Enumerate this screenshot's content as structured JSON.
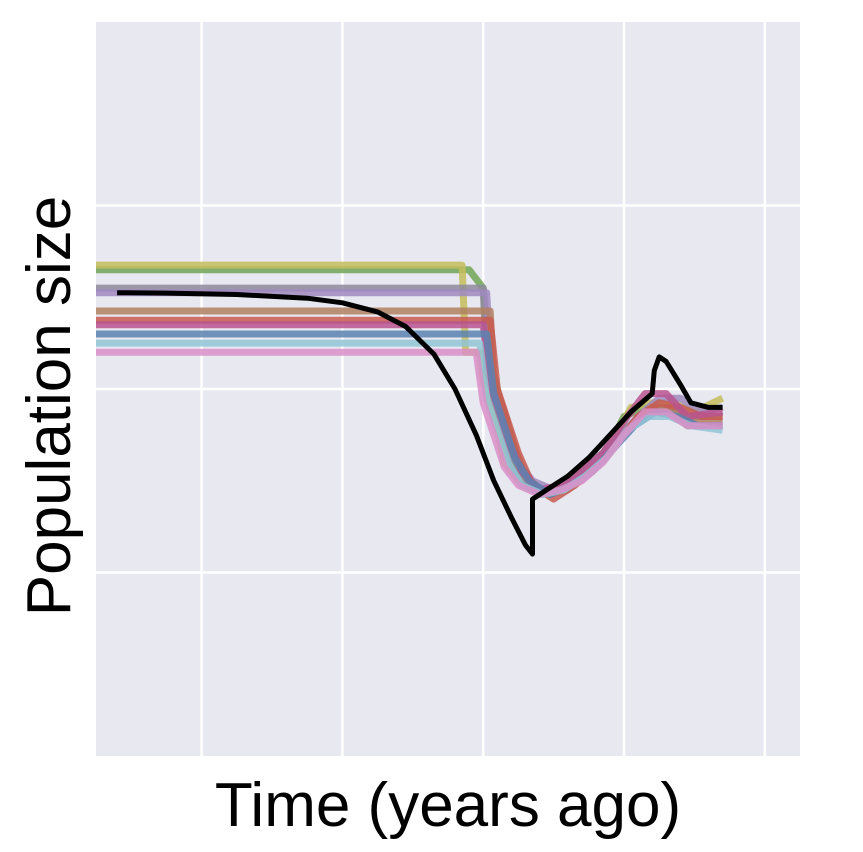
{
  "chart_data": {
    "type": "line",
    "title": "",
    "xlabel": "Time (years ago)",
    "ylabel": "Population size",
    "xlim": [
      0,
      10
    ],
    "ylim": [
      0,
      8
    ],
    "xticks": [
      1.5,
      3.5,
      5.5,
      7.5,
      9.5
    ],
    "yticks": [
      2,
      4,
      6
    ],
    "grid": true,
    "background": "#e8e8f1",
    "grid_color": "#ffffff",
    "series": [
      {
        "color": "#71a555",
        "points": [
          [
            0,
            5.3
          ],
          [
            5.3,
            5.3
          ],
          [
            5.5,
            5.1
          ],
          [
            5.55,
            4.6
          ],
          [
            5.6,
            4.3
          ],
          [
            5.7,
            4.0
          ],
          [
            5.8,
            3.7
          ],
          [
            5.9,
            3.4
          ],
          [
            6.0,
            3.1
          ],
          [
            6.2,
            2.9
          ],
          [
            6.6,
            2.9
          ],
          [
            6.8,
            3.1
          ],
          [
            7.1,
            3.2
          ],
          [
            7.3,
            3.4
          ],
          [
            7.5,
            3.7
          ],
          [
            7.8,
            3.8
          ],
          [
            8.2,
            3.8
          ],
          [
            8.4,
            3.6
          ],
          [
            8.9,
            3.6
          ]
        ]
      },
      {
        "color": "#c4bd5c",
        "points": [
          [
            0,
            5.35
          ],
          [
            5.2,
            5.35
          ],
          [
            5.25,
            4.4
          ],
          [
            5.45,
            4.4
          ],
          [
            5.5,
            4.1
          ],
          [
            5.6,
            3.8
          ],
          [
            5.7,
            3.55
          ],
          [
            5.8,
            3.2
          ],
          [
            6.0,
            3.0
          ],
          [
            6.3,
            2.9
          ],
          [
            6.6,
            2.95
          ],
          [
            6.9,
            3.1
          ],
          [
            7.2,
            3.25
          ],
          [
            7.4,
            3.5
          ],
          [
            7.6,
            3.8
          ],
          [
            7.9,
            3.85
          ],
          [
            8.2,
            3.85
          ],
          [
            8.5,
            3.75
          ],
          [
            8.9,
            3.9
          ]
        ]
      },
      {
        "color": "#8e8a9c",
        "points": [
          [
            0,
            5.1
          ],
          [
            5.5,
            5.1
          ],
          [
            5.55,
            4.2
          ],
          [
            5.65,
            3.9
          ],
          [
            5.8,
            3.5
          ],
          [
            5.9,
            3.2
          ],
          [
            6.0,
            3.05
          ],
          [
            6.3,
            2.85
          ],
          [
            6.6,
            2.95
          ],
          [
            6.9,
            3.15
          ],
          [
            7.2,
            3.3
          ],
          [
            7.5,
            3.55
          ],
          [
            7.8,
            3.75
          ],
          [
            8.1,
            3.8
          ],
          [
            8.4,
            3.7
          ],
          [
            8.9,
            3.7
          ]
        ]
      },
      {
        "color": "#a08ac0",
        "points": [
          [
            0,
            5.05
          ],
          [
            5.55,
            5.05
          ],
          [
            5.6,
            4.3
          ],
          [
            5.7,
            3.95
          ],
          [
            5.85,
            3.6
          ],
          [
            6.0,
            3.2
          ],
          [
            6.2,
            3.0
          ],
          [
            6.5,
            2.9
          ],
          [
            6.8,
            3.0
          ],
          [
            7.1,
            3.2
          ],
          [
            7.4,
            3.45
          ],
          [
            7.7,
            3.7
          ],
          [
            8.0,
            3.9
          ],
          [
            8.3,
            3.9
          ],
          [
            8.6,
            3.75
          ],
          [
            8.9,
            3.8
          ]
        ]
      },
      {
        "color": "#b08060",
        "points": [
          [
            0,
            4.85
          ],
          [
            5.6,
            4.85
          ],
          [
            5.65,
            4.1
          ],
          [
            5.8,
            3.75
          ],
          [
            5.95,
            3.35
          ],
          [
            6.1,
            3.05
          ],
          [
            6.4,
            2.85
          ],
          [
            6.7,
            2.9
          ],
          [
            7.0,
            3.1
          ],
          [
            7.3,
            3.3
          ],
          [
            7.6,
            3.6
          ],
          [
            7.9,
            3.8
          ],
          [
            8.2,
            3.8
          ],
          [
            8.5,
            3.65
          ],
          [
            8.9,
            3.65
          ]
        ]
      },
      {
        "color": "#c85a50",
        "points": [
          [
            0,
            4.75
          ],
          [
            5.6,
            4.75
          ],
          [
            5.7,
            4.0
          ],
          [
            5.85,
            3.65
          ],
          [
            6.0,
            3.3
          ],
          [
            6.2,
            2.95
          ],
          [
            6.5,
            2.8
          ],
          [
            6.8,
            2.95
          ],
          [
            7.1,
            3.15
          ],
          [
            7.4,
            3.4
          ],
          [
            7.7,
            3.7
          ],
          [
            8.0,
            3.85
          ],
          [
            8.3,
            3.8
          ],
          [
            8.6,
            3.7
          ],
          [
            8.9,
            3.7
          ]
        ]
      },
      {
        "color": "#b85490",
        "points": [
          [
            0,
            4.7
          ],
          [
            5.5,
            4.7
          ],
          [
            5.6,
            4.05
          ],
          [
            5.75,
            3.7
          ],
          [
            5.9,
            3.35
          ],
          [
            6.05,
            3.1
          ],
          [
            6.3,
            2.9
          ],
          [
            6.6,
            2.95
          ],
          [
            6.9,
            3.1
          ],
          [
            7.2,
            3.3
          ],
          [
            7.5,
            3.65
          ],
          [
            7.8,
            3.95
          ],
          [
            8.1,
            3.95
          ],
          [
            8.4,
            3.7
          ],
          [
            8.9,
            3.75
          ]
        ]
      },
      {
        "color": "#5b82b0",
        "points": [
          [
            0,
            4.6
          ],
          [
            5.55,
            4.6
          ],
          [
            5.65,
            3.95
          ],
          [
            5.8,
            3.6
          ],
          [
            5.95,
            3.25
          ],
          [
            6.15,
            3.0
          ],
          [
            6.45,
            2.85
          ],
          [
            6.75,
            2.95
          ],
          [
            7.05,
            3.1
          ],
          [
            7.35,
            3.35
          ],
          [
            7.65,
            3.6
          ],
          [
            7.95,
            3.75
          ],
          [
            8.25,
            3.7
          ],
          [
            8.55,
            3.6
          ],
          [
            8.9,
            3.6
          ]
        ]
      },
      {
        "color": "#90c4d6",
        "points": [
          [
            0,
            4.5
          ],
          [
            5.45,
            4.5
          ],
          [
            5.55,
            3.9
          ],
          [
            5.7,
            3.55
          ],
          [
            5.85,
            3.2
          ],
          [
            6.05,
            2.95
          ],
          [
            6.35,
            2.85
          ],
          [
            6.65,
            2.9
          ],
          [
            6.95,
            3.05
          ],
          [
            7.25,
            3.25
          ],
          [
            7.55,
            3.55
          ],
          [
            7.85,
            3.7
          ],
          [
            8.15,
            3.7
          ],
          [
            8.45,
            3.6
          ],
          [
            8.9,
            3.55
          ]
        ]
      },
      {
        "color": "#d98fc8",
        "points": [
          [
            0,
            4.4
          ],
          [
            5.4,
            4.4
          ],
          [
            5.5,
            3.85
          ],
          [
            5.65,
            3.5
          ],
          [
            5.8,
            3.15
          ],
          [
            6.0,
            2.95
          ],
          [
            6.3,
            2.85
          ],
          [
            6.6,
            2.9
          ],
          [
            6.9,
            3.0
          ],
          [
            7.2,
            3.2
          ],
          [
            7.5,
            3.5
          ],
          [
            7.8,
            3.75
          ],
          [
            8.1,
            3.75
          ],
          [
            8.4,
            3.6
          ],
          [
            8.9,
            3.6
          ]
        ]
      },
      {
        "color": "#000000",
        "points": [
          [
            0.3,
            5.05
          ],
          [
            1.0,
            5.045
          ],
          [
            2.0,
            5.03
          ],
          [
            3.0,
            4.99
          ],
          [
            3.5,
            4.94
          ],
          [
            4.0,
            4.84
          ],
          [
            4.4,
            4.68
          ],
          [
            4.8,
            4.38
          ],
          [
            5.1,
            4.0
          ],
          [
            5.4,
            3.5
          ],
          [
            5.65,
            3.0
          ],
          [
            5.9,
            2.6
          ],
          [
            6.1,
            2.3
          ],
          [
            6.2,
            2.2
          ],
          [
            6.2,
            2.8
          ],
          [
            6.4,
            2.9
          ],
          [
            6.7,
            3.05
          ],
          [
            7.0,
            3.25
          ],
          [
            7.3,
            3.5
          ],
          [
            7.6,
            3.75
          ],
          [
            7.9,
            3.95
          ],
          [
            7.93,
            4.2
          ],
          [
            8.0,
            4.35
          ],
          [
            8.1,
            4.3
          ],
          [
            8.3,
            4.05
          ],
          [
            8.45,
            3.85
          ],
          [
            8.7,
            3.8
          ],
          [
            8.9,
            3.8
          ]
        ]
      }
    ]
  }
}
